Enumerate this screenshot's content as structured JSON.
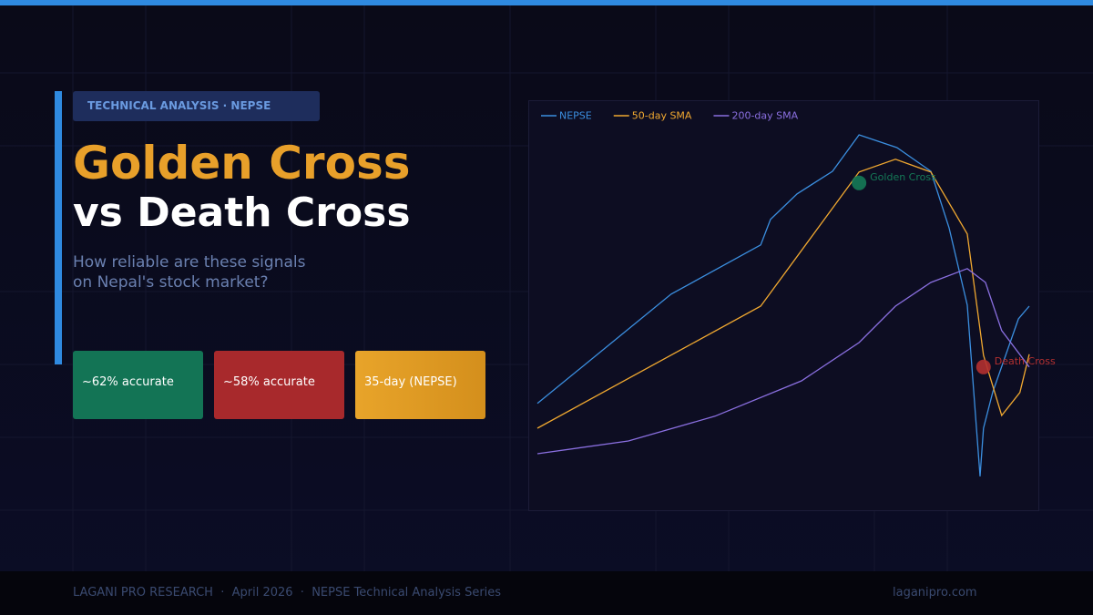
{
  "header": {
    "tag": "TECHNICAL ANALYSIS · NEPSE",
    "title_line1": "Golden Cross",
    "title_line2": "vs Death Cross",
    "subtitle_line1": "How reliable are these signals",
    "subtitle_line2": "on Nepal's stock market?"
  },
  "stats": [
    "~62% accurate",
    "~58% accurate",
    "35-day (NEPSE)"
  ],
  "chart_data": {
    "type": "line",
    "xlim": [
      0,
      100
    ],
    "ylim": [
      0,
      100
    ],
    "legend": "upper left",
    "series": [
      {
        "name": "NEPSE",
        "color": "#3b8fe0",
        "x": [
          0,
          27.2,
          45.4,
          47.4,
          52.8,
          60,
          65.4,
          73.1,
          80,
          83.7,
          87.4,
          90,
          90.7,
          92.6,
          97.8,
          100
        ],
        "values": [
          24.3,
          54.3,
          67.8,
          74.8,
          81.8,
          88,
          98,
          94.5,
          88,
          72.5,
          51.3,
          4.3,
          17.5,
          27.5,
          47.5,
          51
        ]
      },
      {
        "name": "50-day SMA",
        "color": "#f0a830",
        "x": [
          0,
          45.4,
          65.4,
          72.8,
          80,
          87.4,
          90.7,
          94.4,
          98.1,
          100
        ],
        "values": [
          17.5,
          51,
          87.8,
          91.3,
          87.8,
          70.8,
          37.5,
          21,
          27.3,
          37.8
        ]
      },
      {
        "name": "200-day SMA",
        "color": "#8a6fe0",
        "x": [
          0,
          18.5,
          36.1,
          53.7,
          65.4,
          72.8,
          80,
          87.4,
          91.1,
          94.4,
          100
        ],
        "values": [
          10.5,
          14,
          20.8,
          30.5,
          41,
          51,
          57.5,
          61.3,
          57.5,
          44.3,
          34.3
        ]
      }
    ],
    "annotations": [
      {
        "label": "Golden Cross",
        "x": 65.4,
        "y": 84.8,
        "color": "#157a57"
      },
      {
        "label": "Death Cross",
        "x": 90.7,
        "y": 34.3,
        "color": "#b33030"
      }
    ]
  },
  "footer": {
    "left": "LAGANI PRO RESEARCH  ·  April 2026  ·  NEPSE Technical Analysis Series",
    "right": "laganipro.com"
  }
}
